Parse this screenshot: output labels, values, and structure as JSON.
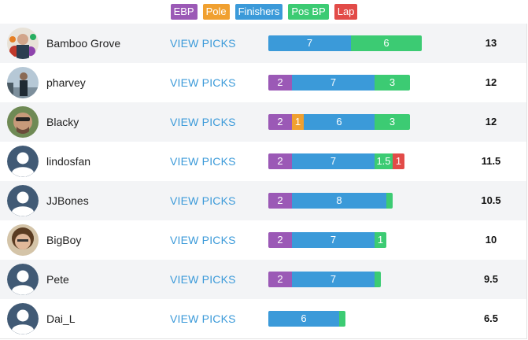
{
  "colors": {
    "ebp": "#9b59b6",
    "pole": "#f0a030",
    "finishers": "#3b9ad9",
    "posbp": "#3ccb73",
    "lap": "#e24b48",
    "link": "#3b9ad9"
  },
  "legend": [
    {
      "key": "ebp",
      "label": "EBP"
    },
    {
      "key": "pole",
      "label": "Pole"
    },
    {
      "key": "finishers",
      "label": "Finishers"
    },
    {
      "key": "posbp",
      "label": "Pos BP"
    },
    {
      "key": "lap",
      "label": "Lap"
    }
  ],
  "view_picks_label": "VIEW PICKS",
  "rows": [
    {
      "user": "Bamboo Grove",
      "avatar": "photo-flowers-icon",
      "total": "13",
      "segments": [
        {
          "key": "finishers",
          "value": 7,
          "label": "7"
        },
        {
          "key": "posbp",
          "value": 6,
          "label": "6"
        }
      ]
    },
    {
      "user": "pharvey",
      "avatar": "photo-person-icon",
      "total": "12",
      "segments": [
        {
          "key": "ebp",
          "value": 2,
          "label": "2"
        },
        {
          "key": "finishers",
          "value": 7,
          "label": "7"
        },
        {
          "key": "posbp",
          "value": 3,
          "label": "3"
        }
      ]
    },
    {
      "user": "Blacky",
      "avatar": "photo-selfie-icon",
      "total": "12",
      "segments": [
        {
          "key": "ebp",
          "value": 2,
          "label": "2"
        },
        {
          "key": "pole",
          "value": 1,
          "label": "1"
        },
        {
          "key": "finishers",
          "value": 6,
          "label": "6"
        },
        {
          "key": "posbp",
          "value": 3,
          "label": "3"
        }
      ]
    },
    {
      "user": "lindosfan",
      "avatar": "default-user-icon",
      "total": "11.5",
      "segments": [
        {
          "key": "ebp",
          "value": 2,
          "label": "2"
        },
        {
          "key": "finishers",
          "value": 7,
          "label": "7"
        },
        {
          "key": "posbp",
          "value": 1.5,
          "label": "1.5"
        },
        {
          "key": "lap",
          "value": 1,
          "label": "1"
        }
      ]
    },
    {
      "user": "JJBones",
      "avatar": "default-user-icon",
      "total": "10.5",
      "segments": [
        {
          "key": "ebp",
          "value": 2,
          "label": "2"
        },
        {
          "key": "finishers",
          "value": 8,
          "label": "8"
        },
        {
          "key": "posbp",
          "value": 0.5,
          "label": ""
        }
      ]
    },
    {
      "user": "BigBoy",
      "avatar": "photo-face-icon",
      "total": "10",
      "segments": [
        {
          "key": "ebp",
          "value": 2,
          "label": "2"
        },
        {
          "key": "finishers",
          "value": 7,
          "label": "7"
        },
        {
          "key": "posbp",
          "value": 1,
          "label": "1"
        }
      ]
    },
    {
      "user": "Pete",
      "avatar": "default-user-icon",
      "total": "9.5",
      "segments": [
        {
          "key": "ebp",
          "value": 2,
          "label": "2"
        },
        {
          "key": "finishers",
          "value": 7,
          "label": "7"
        },
        {
          "key": "posbp",
          "value": 0.5,
          "label": ""
        }
      ]
    },
    {
      "user": "Dai_L",
      "avatar": "default-user-icon",
      "total": "6.5",
      "segments": [
        {
          "key": "finishers",
          "value": 6,
          "label": "6"
        },
        {
          "key": "posbp",
          "value": 0.5,
          "label": ""
        }
      ]
    }
  ]
}
